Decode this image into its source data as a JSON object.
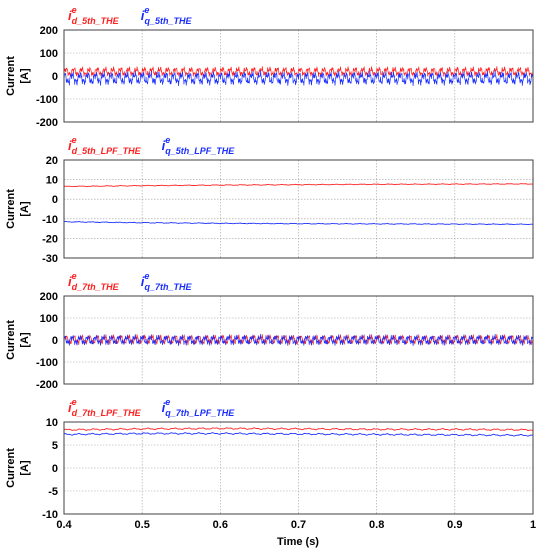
{
  "figure": {
    "xlabel": "Time (s)"
  },
  "colors": {
    "d": "#ff2020",
    "q": "#1a2fff",
    "grid": "#a0a0a0",
    "frame": "#404040"
  },
  "chart_data": [
    {
      "type": "line",
      "ylabel_line1": "Current",
      "ylabel_line2": "[A]",
      "ylim": [
        -200,
        200
      ],
      "yticks": [
        "200",
        "100",
        "0",
        "-100",
        "-200"
      ],
      "xlim": [
        0.4,
        1.0
      ],
      "legend": [
        {
          "base": "i",
          "sup": "e",
          "sub": "d_5th_THE",
          "color": "#ff2020"
        },
        {
          "base": "i",
          "sup": "e",
          "sub": "q_5th_THE",
          "color": "#1a2fff"
        }
      ],
      "series": [
        {
          "color": "#ff2020",
          "mean": 18,
          "amp": 22,
          "kind": "ripple"
        },
        {
          "color": "#1a2fff",
          "mean": -10,
          "amp": 30,
          "kind": "ripple"
        }
      ]
    },
    {
      "type": "line",
      "ylabel_line1": "Current",
      "ylabel_line2": "[A]",
      "ylim": [
        -30,
        20
      ],
      "yticks": [
        "20",
        "10",
        "0",
        "-10",
        "-20",
        "-30"
      ],
      "xlim": [
        0.4,
        1.0
      ],
      "legend": [
        {
          "base": "i",
          "sup": "e",
          "sub": "d_5th_LPF_THE",
          "color": "#ff2020"
        },
        {
          "base": "i",
          "sup": "e",
          "sub": "q_5th_LPF_THE",
          "color": "#1a2fff"
        }
      ],
      "series": [
        {
          "color": "#ff2020",
          "x": [
            0.4,
            0.5,
            0.6,
            0.7,
            0.8,
            0.9,
            1.0
          ],
          "values": [
            6.5,
            6.9,
            7.2,
            7.4,
            7.6,
            7.7,
            7.8
          ],
          "kind": "smooth"
        },
        {
          "color": "#1a2fff",
          "x": [
            0.4,
            0.5,
            0.6,
            0.7,
            0.8,
            0.9,
            1.0
          ],
          "values": [
            -11.5,
            -12.0,
            -12.3,
            -12.5,
            -12.6,
            -12.7,
            -12.8
          ],
          "kind": "smooth"
        }
      ]
    },
    {
      "type": "line",
      "ylabel_line1": "Current",
      "ylabel_line2": "[A]",
      "ylim": [
        -200,
        200
      ],
      "yticks": [
        "200",
        "100",
        "0",
        "-100",
        "-200"
      ],
      "xlim": [
        0.4,
        1.0
      ],
      "legend": [
        {
          "base": "i",
          "sup": "e",
          "sub": "d_7th_THE",
          "color": "#ff2020"
        },
        {
          "base": "i",
          "sup": "e",
          "sub": "q_7th_THE",
          "color": "#1a2fff"
        }
      ],
      "series": [
        {
          "color": "#ff2020",
          "mean": 2,
          "amp": 22,
          "kind": "ripple"
        },
        {
          "color": "#1a2fff",
          "mean": 0,
          "amp": 24,
          "kind": "ripple"
        }
      ]
    },
    {
      "type": "line",
      "ylabel_line1": "Current",
      "ylabel_line2": "[A]",
      "ylim": [
        -10,
        10
      ],
      "yticks": [
        "10",
        "5",
        "0",
        "-5",
        "-10"
      ],
      "xlim": [
        0.4,
        1.0
      ],
      "xticks": [
        "0.4",
        "0.5",
        "0.6",
        "0.7",
        "0.8",
        "0.9",
        "1"
      ],
      "legend": [
        {
          "base": "i",
          "sup": "e",
          "sub": "d_7th_LPF_THE",
          "color": "#ff2020"
        },
        {
          "base": "i",
          "sup": "e",
          "sub": "q_7th_LPF_THE",
          "color": "#1a2fff"
        }
      ],
      "series": [
        {
          "color": "#ff2020",
          "x": [
            0.4,
            0.5,
            0.6,
            0.7,
            0.8,
            0.9,
            1.0
          ],
          "values": [
            8.3,
            8.5,
            8.6,
            8.5,
            8.4,
            8.4,
            8.3
          ],
          "kind": "smooth"
        },
        {
          "color": "#1a2fff",
          "x": [
            0.4,
            0.5,
            0.6,
            0.7,
            0.8,
            0.9,
            1.0
          ],
          "values": [
            7.3,
            7.5,
            7.5,
            7.4,
            7.3,
            7.2,
            7.1
          ],
          "kind": "smooth"
        }
      ]
    }
  ]
}
